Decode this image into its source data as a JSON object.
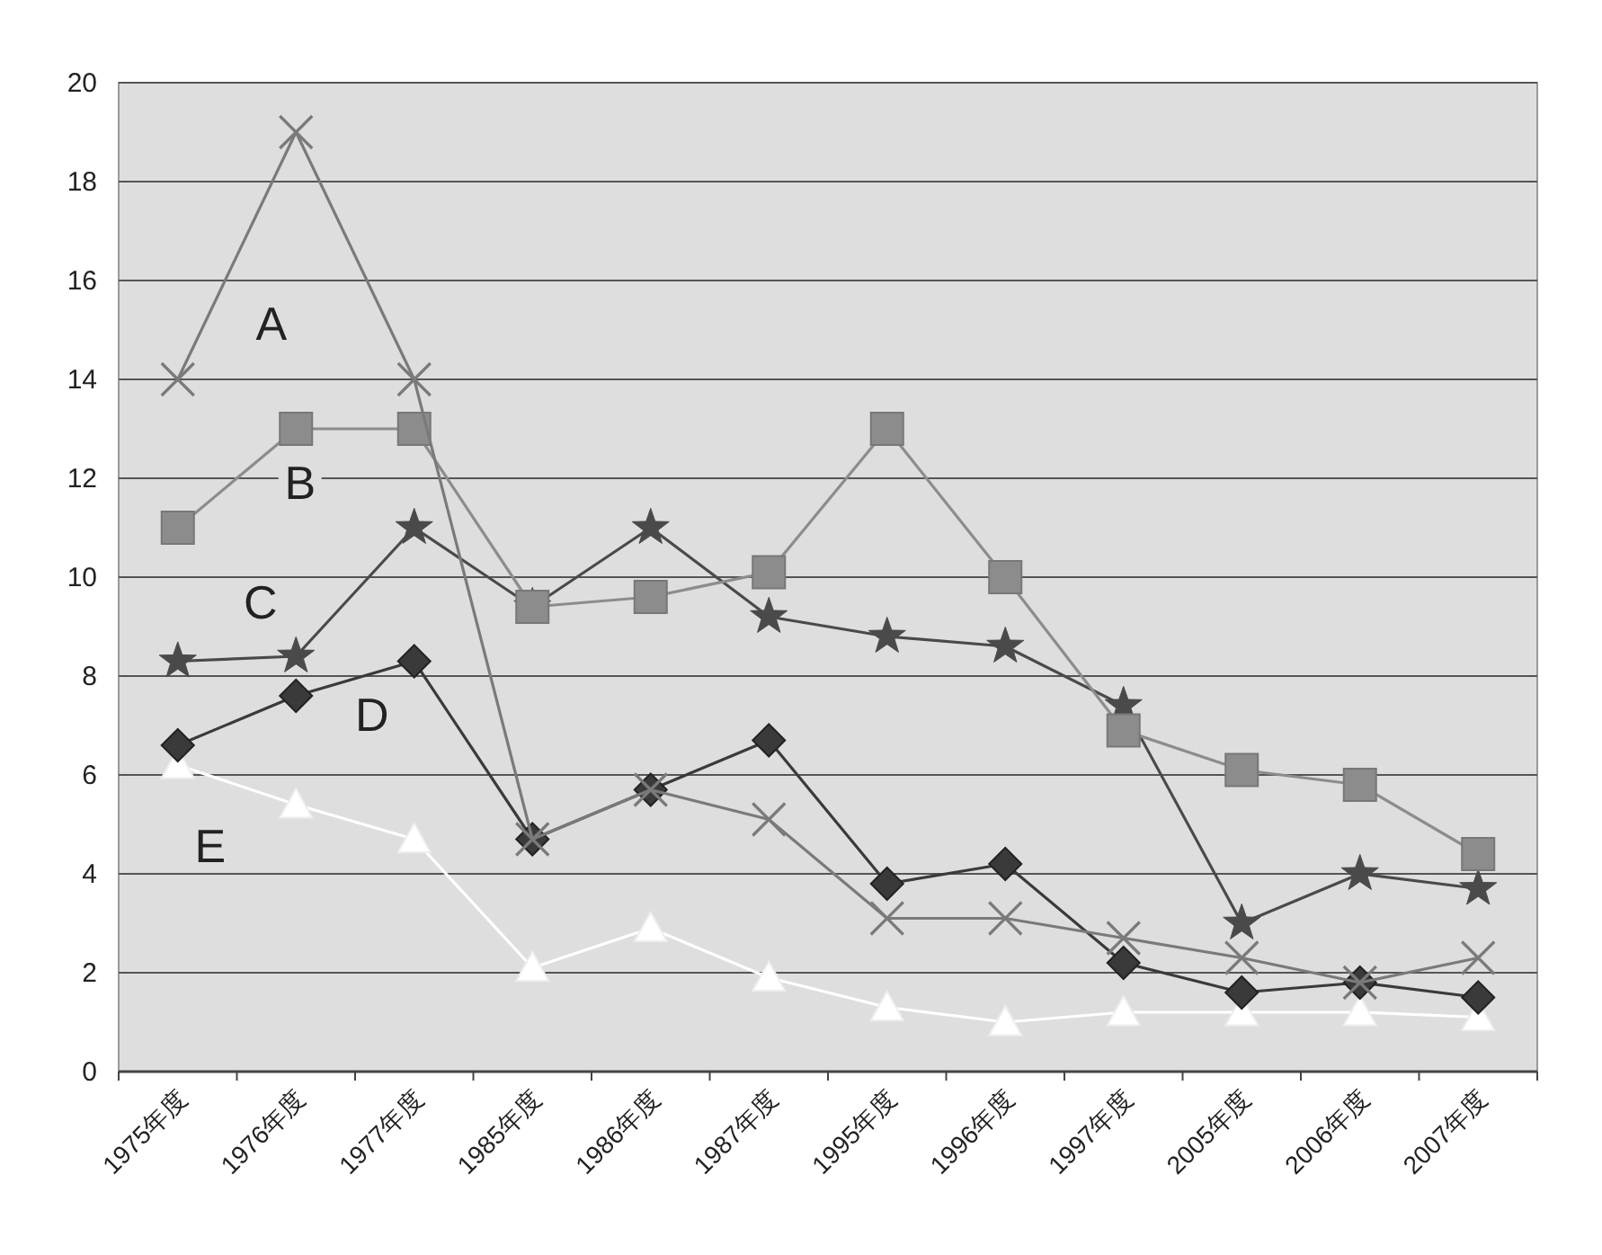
{
  "chart_data": {
    "type": "line",
    "categories": [
      "1975年度",
      "1976年度",
      "1977年度",
      "1985年度",
      "1986年度",
      "1987年度",
      "1995年度",
      "1996年度",
      "1997年度",
      "2005年度",
      "2006年度",
      "2007年度"
    ],
    "ylim": [
      0,
      20
    ],
    "yticks": [
      0,
      2,
      4,
      6,
      8,
      10,
      12,
      14,
      16,
      18,
      20
    ],
    "grid": "y",
    "legend": false,
    "series": [
      {
        "name": "A",
        "color": "#7a7a7a",
        "marker": "cross",
        "values": [
          14,
          19,
          14,
          4.7,
          5.7,
          5.1,
          3.1,
          3.1,
          2.7,
          2.3,
          1.8,
          2.3
        ]
      },
      {
        "name": "B",
        "color": "#8c8c8c",
        "marker": "square",
        "values": [
          11,
          13,
          13,
          9.4,
          9.6,
          10.1,
          13,
          10,
          6.9,
          6.1,
          5.8,
          4.4
        ]
      },
      {
        "name": "C",
        "color": "#4a4a4a",
        "marker": "star",
        "values": [
          8.3,
          8.4,
          11,
          9.4,
          11,
          9.2,
          8.8,
          8.6,
          7.4,
          3.0,
          4.0,
          3.7
        ]
      },
      {
        "name": "D",
        "color": "#3a3a3a",
        "marker": "diamond",
        "values": [
          6.6,
          7.6,
          8.3,
          4.7,
          5.7,
          6.7,
          3.8,
          4.2,
          2.2,
          1.6,
          1.8,
          1.5
        ]
      },
      {
        "name": "E",
        "color": "#ffffff",
        "marker": "triangle",
        "values": [
          6.2,
          5.4,
          4.7,
          2.1,
          2.9,
          1.9,
          1.3,
          1.0,
          1.2,
          1.2,
          1.2,
          1.1
        ]
      }
    ]
  }
}
